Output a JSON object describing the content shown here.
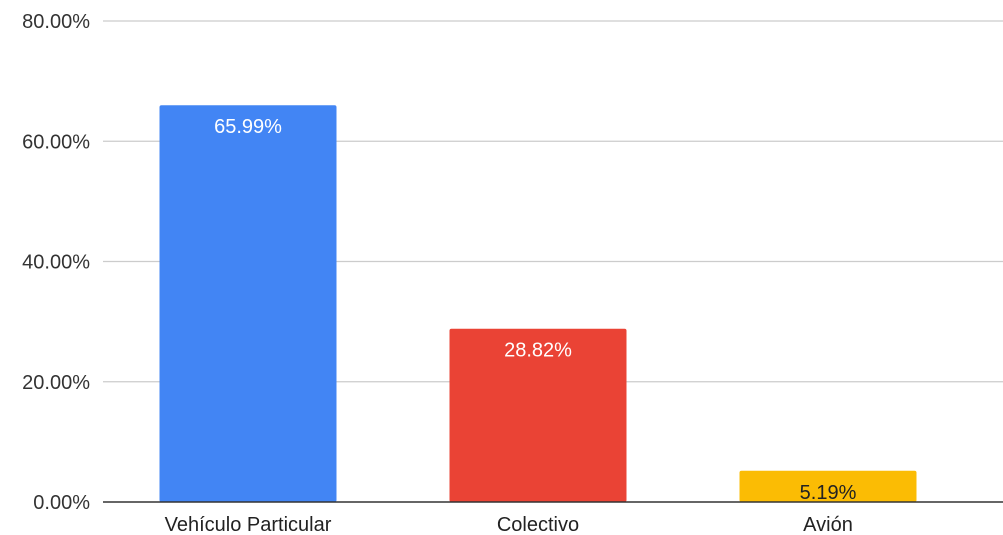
{
  "chart_data": {
    "type": "bar",
    "title": "",
    "xlabel": "",
    "ylabel": "",
    "categories": [
      "Vehículo Particular",
      "Colectivo",
      "Avión"
    ],
    "values": [
      65.99,
      28.82,
      5.19
    ],
    "data_labels": [
      "65.99%",
      "28.82%",
      "5.19%"
    ],
    "bar_colors": [
      "#4285f4",
      "#ea4335",
      "#fbbc04"
    ],
    "label_colors": [
      "#ffffff",
      "#ffffff",
      "#222222"
    ],
    "ylim": [
      0,
      80
    ],
    "yticks": [
      0,
      20,
      40,
      60,
      80
    ],
    "ytick_labels": [
      "0.00%",
      "20.00%",
      "40.00%",
      "60.00%",
      "80.00%"
    ],
    "grid": true,
    "legend": "none"
  }
}
